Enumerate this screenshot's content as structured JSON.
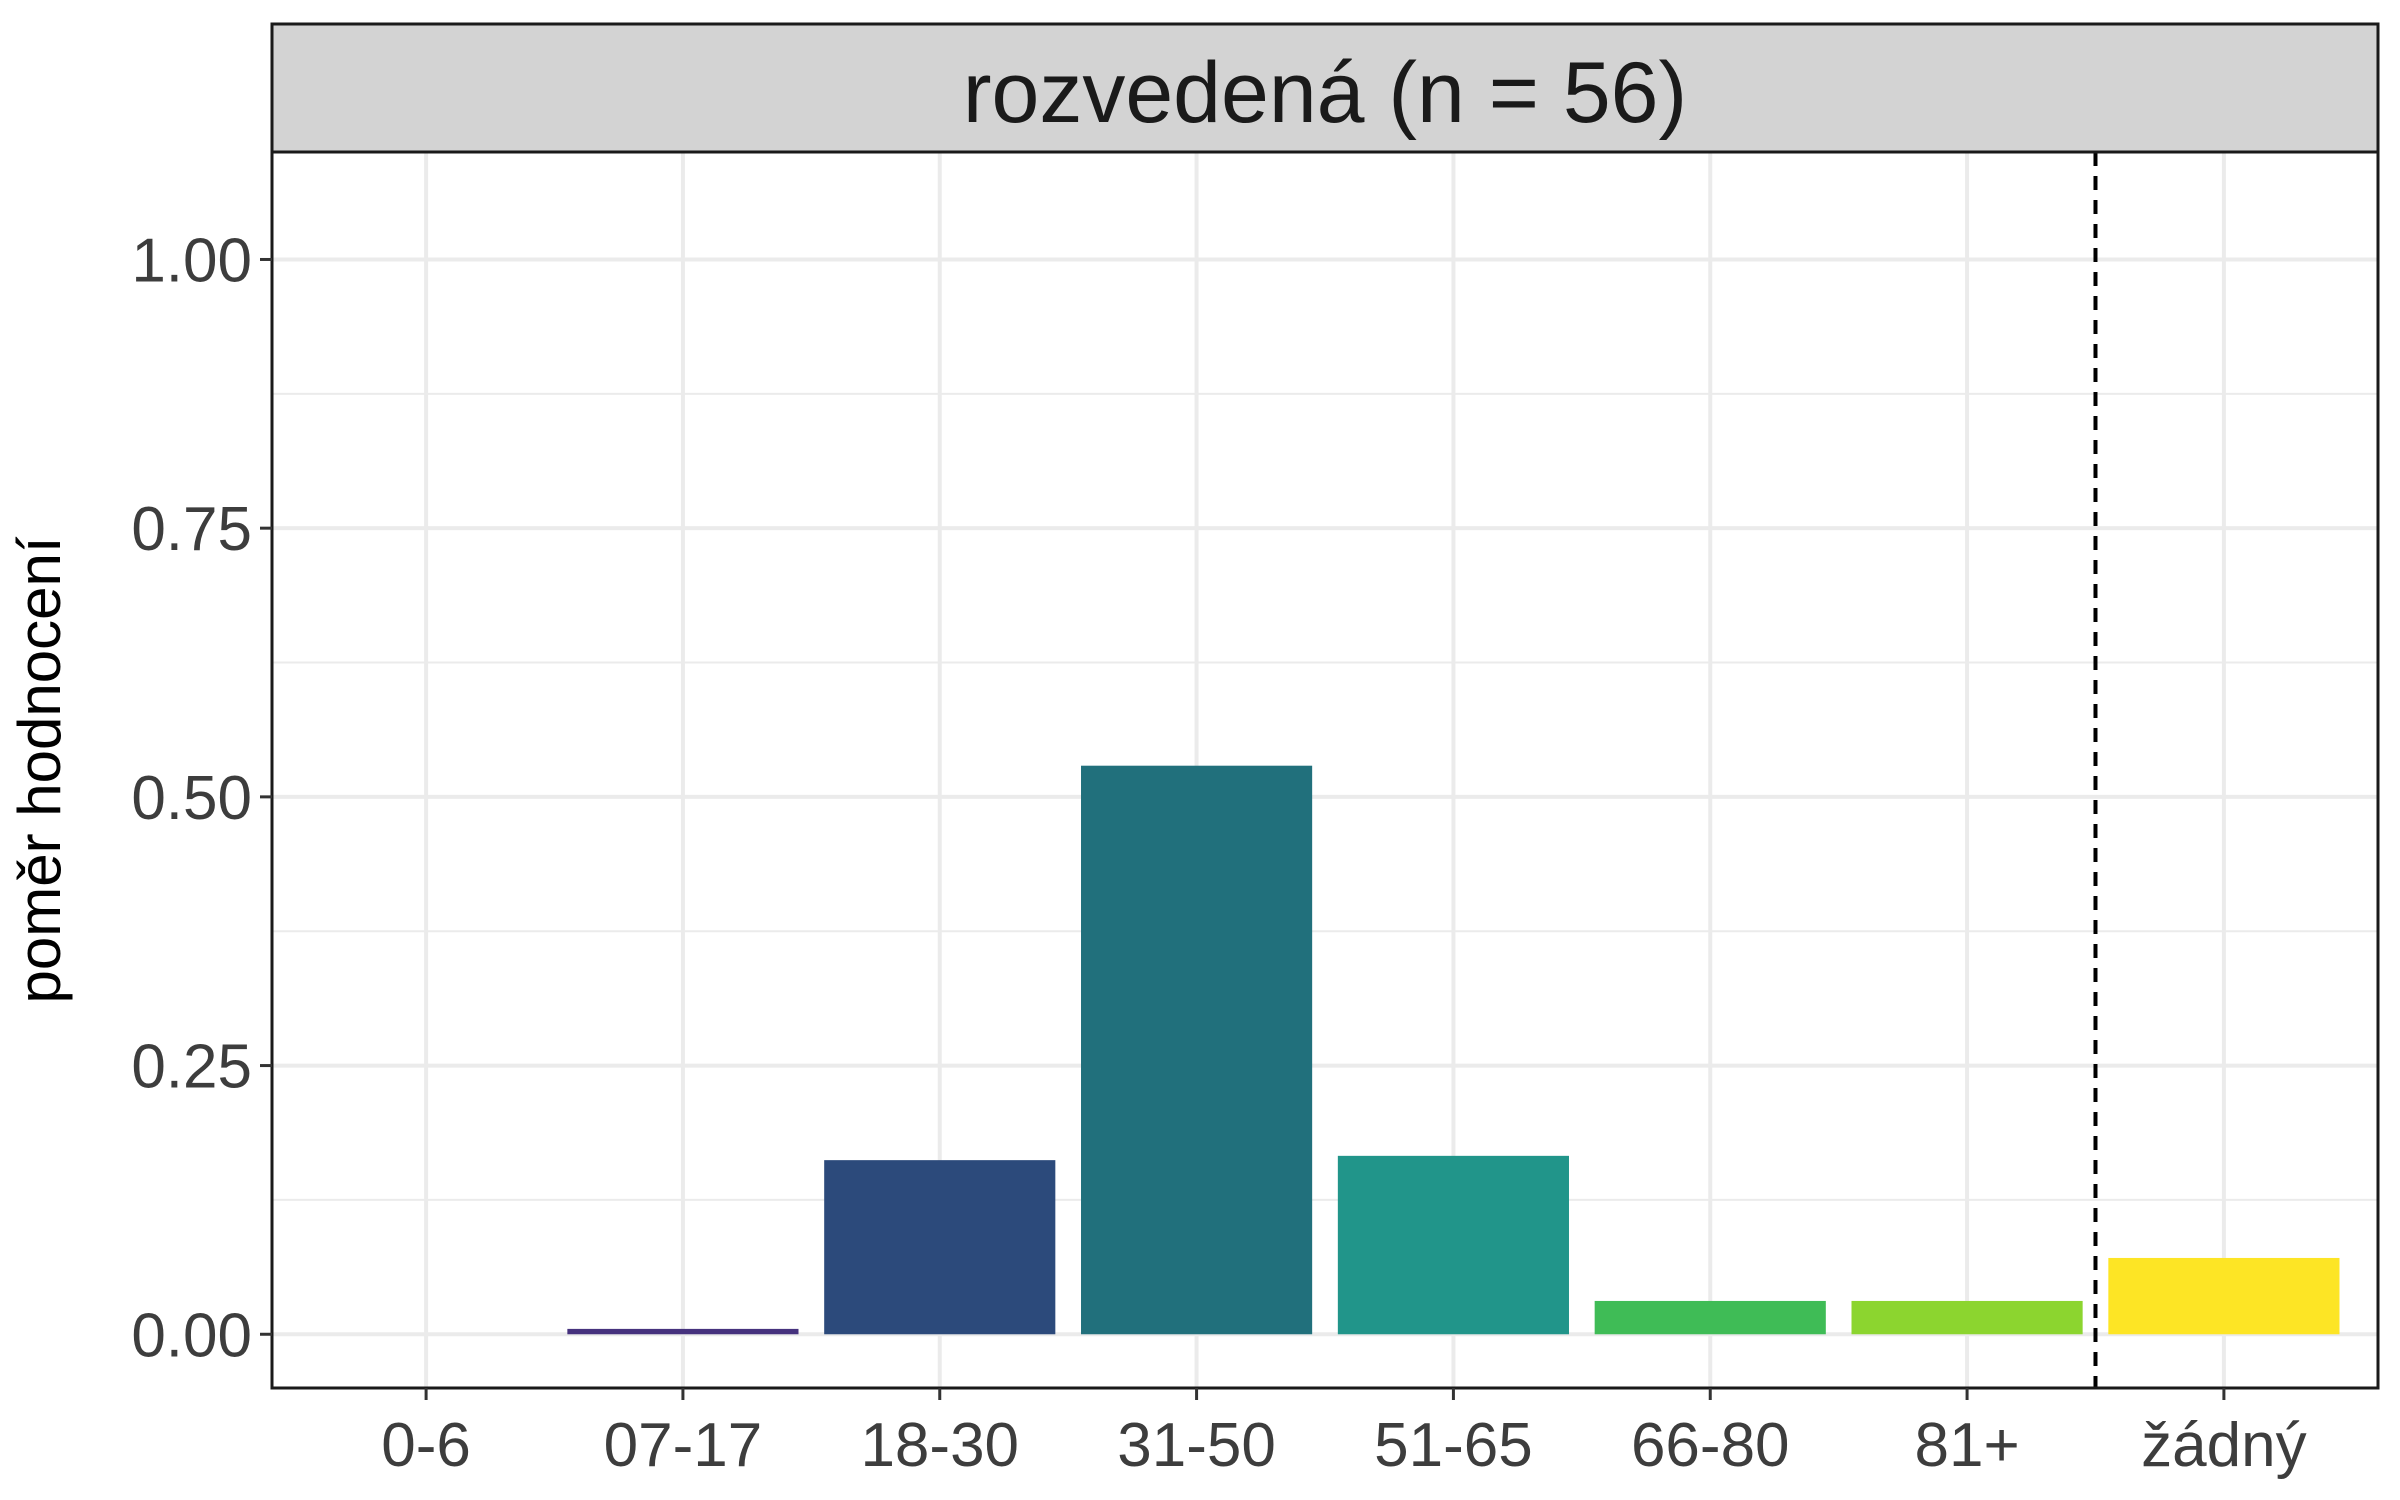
{
  "chart_data": {
    "type": "bar",
    "title": "rozvedená (n = 56)",
    "xlabel": "",
    "ylabel": "poměr hodnocení",
    "categories": [
      "0-6",
      "07-17",
      "18-30",
      "31-50",
      "51-65",
      "66-80",
      "81+",
      "žádný"
    ],
    "values": [
      0.0,
      0.005,
      0.162,
      0.529,
      0.166,
      0.031,
      0.031,
      0.071
    ],
    "colors": [
      "#440154",
      "#46327E",
      "#2C4A7B",
      "#21707C",
      "#21958A",
      "#3FBC56",
      "#8CD52F",
      "#FDE525"
    ],
    "ylim": [
      -0.05,
      1.1
    ],
    "yticks": [
      0.0,
      0.25,
      0.5,
      0.75,
      1.0
    ],
    "ytick_labels": [
      "0.00",
      "0.25",
      "0.50",
      "0.75",
      "1.00"
    ],
    "grid": true,
    "separator_after": "81+",
    "separator_style": "dashed",
    "legend": "none"
  }
}
